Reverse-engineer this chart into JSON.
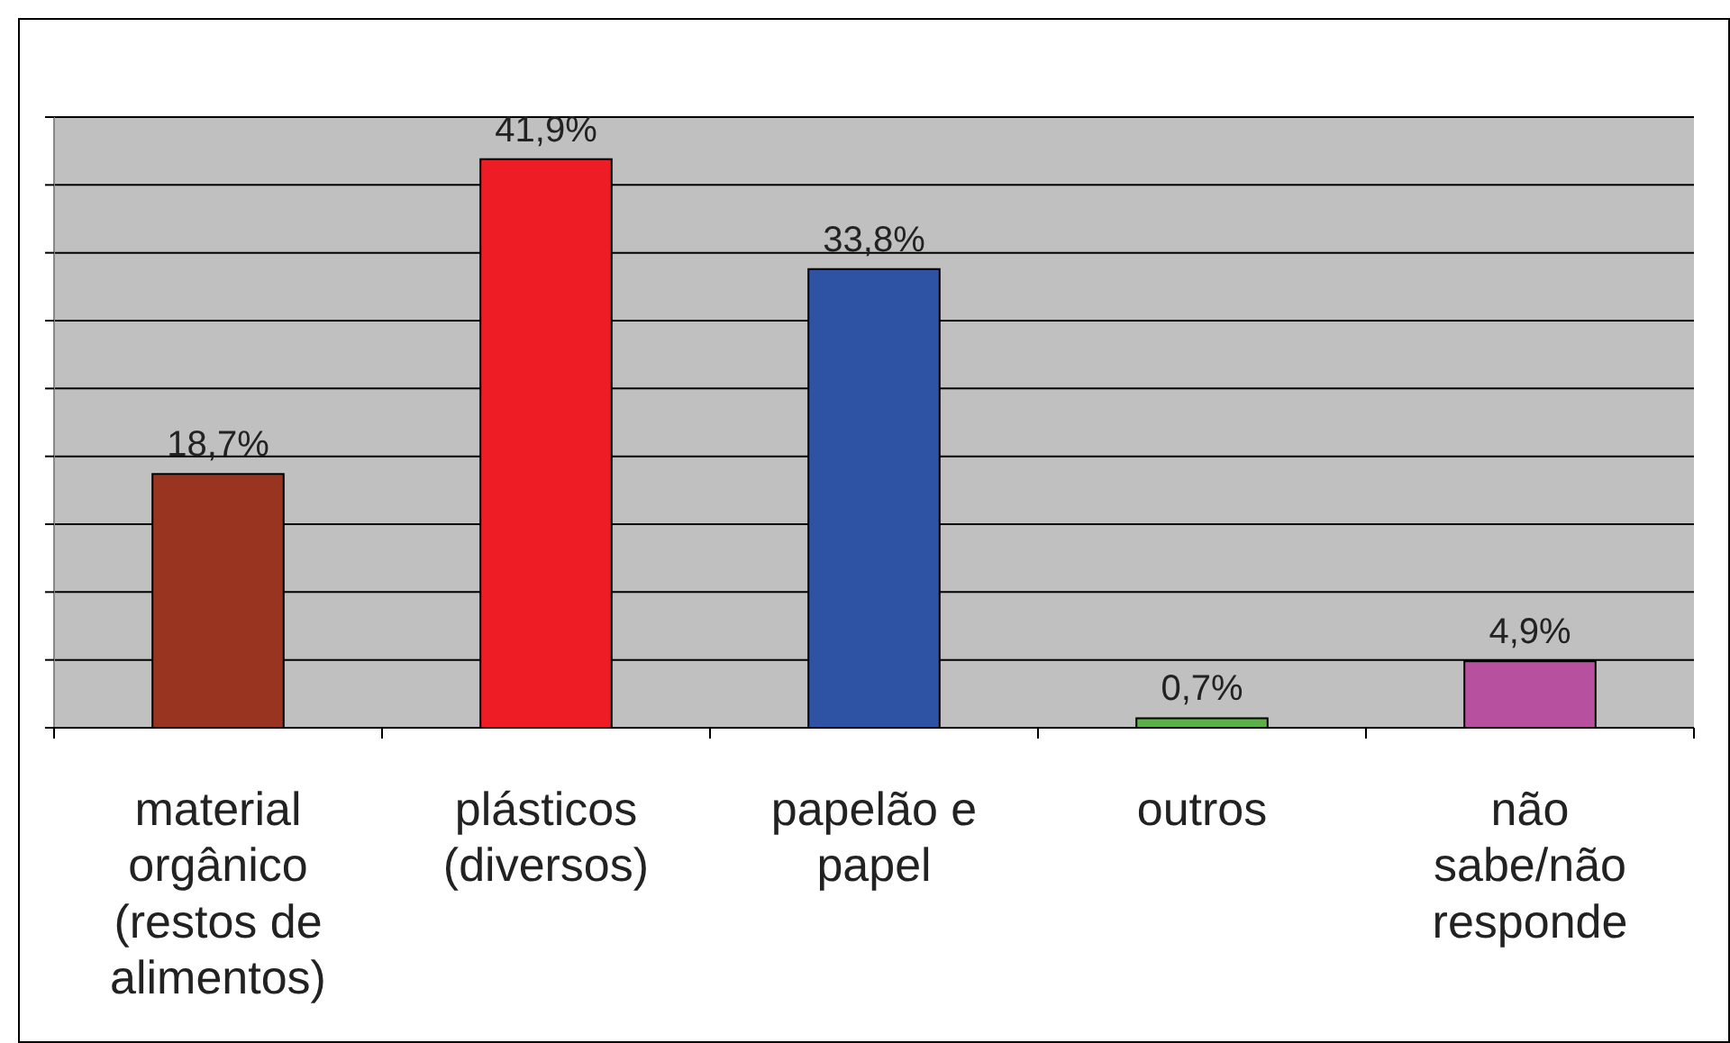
{
  "chart_data": {
    "type": "bar",
    "categories": [
      "material orgânico (restos de alimentos)",
      "plásticos (diversos)",
      "papelão e papel",
      "outros",
      "não sabe/não responde"
    ],
    "values": [
      18.7,
      41.9,
      33.8,
      0.7,
      4.9
    ],
    "colors": [
      "#98341f",
      "#ee1c24",
      "#2e52a4",
      "#5bb047",
      "#b7509f"
    ],
    "value_labels": [
      "18,7%",
      "41,9%",
      "33,8%",
      "0,7%",
      "4,9%"
    ],
    "ylim": [
      0,
      45
    ],
    "yticks": [
      {
        "value": 0,
        "label": null
      },
      {
        "value": 5,
        "label": null
      },
      {
        "value": 10,
        "label": null
      },
      {
        "value": 15,
        "label": null
      },
      {
        "value": 20,
        "label": null
      },
      {
        "value": 25,
        "label": null
      },
      {
        "value": 30,
        "label": null
      },
      {
        "value": 35,
        "label": null
      },
      {
        "value": 40,
        "label": null
      },
      {
        "value": 45,
        "label": null
      }
    ],
    "tick_labels": "x",
    "grid": "y"
  }
}
